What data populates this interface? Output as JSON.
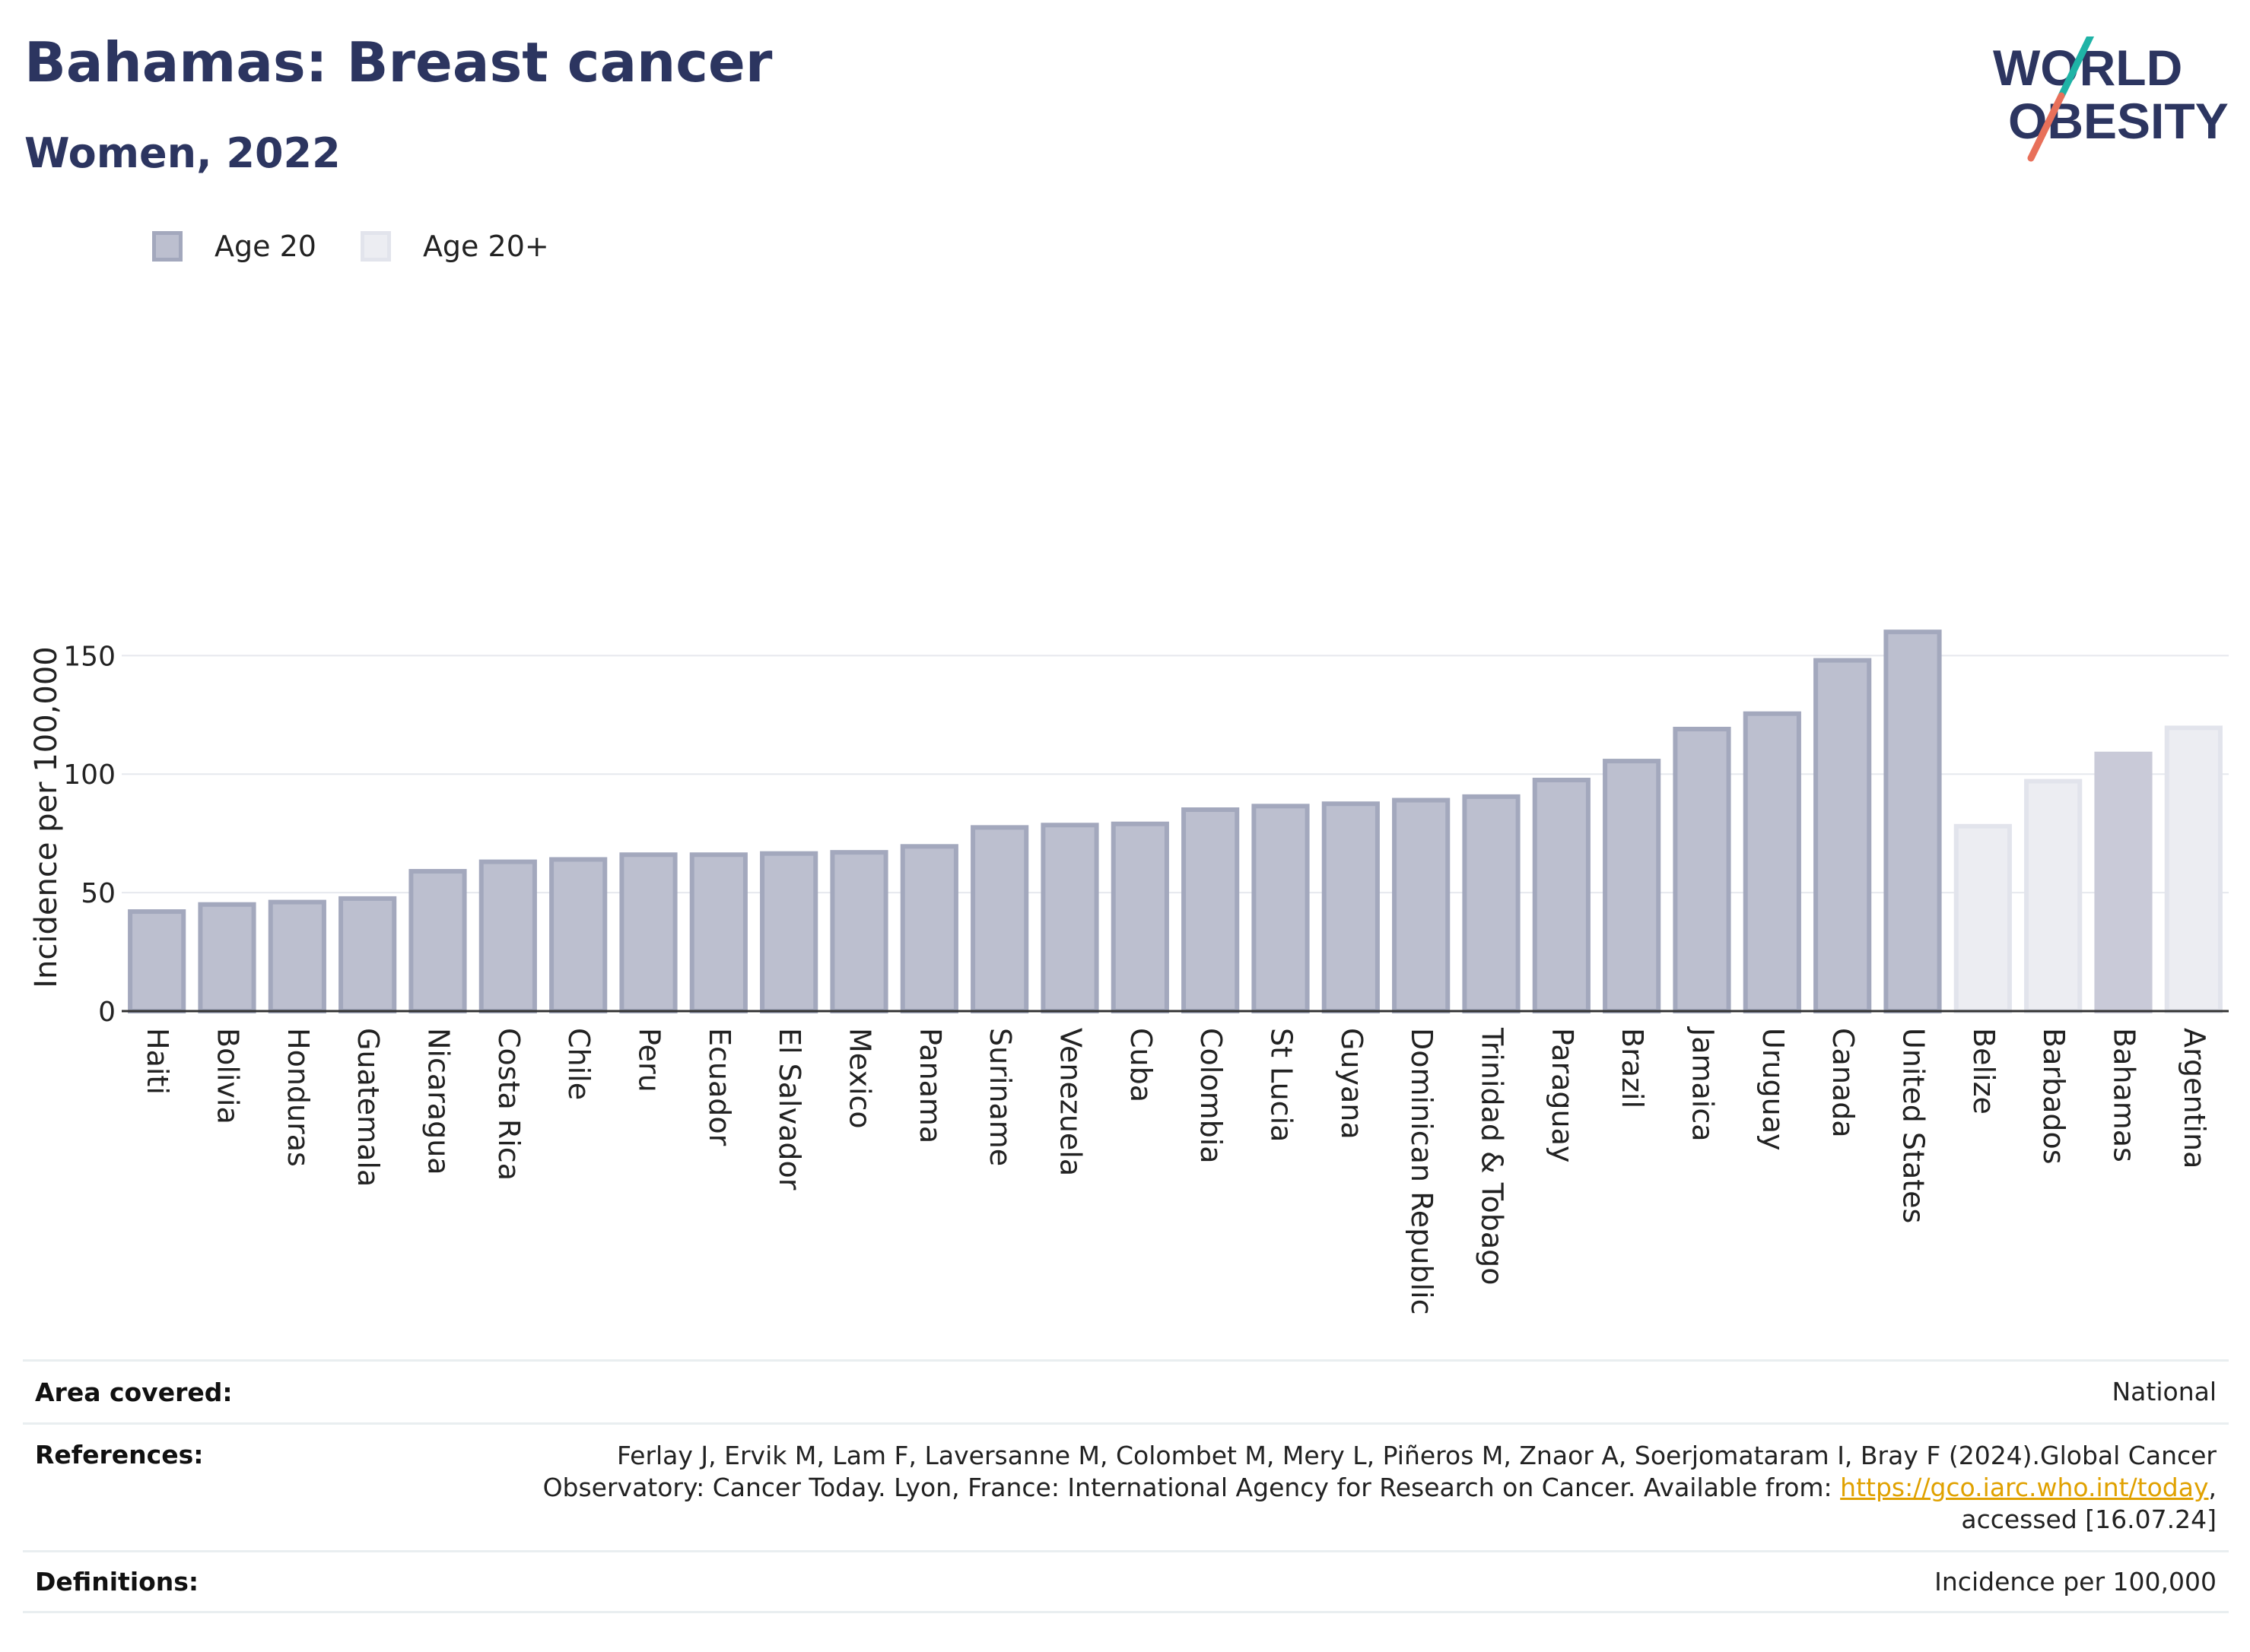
{
  "header": {
    "title": "Bahamas: Breast cancer",
    "subtitle": "Women, 2022"
  },
  "logo": {
    "line1": "WORLD",
    "line2": "OBESITY"
  },
  "legend": {
    "items": [
      "Age 20",
      "Age 20+"
    ]
  },
  "colors": {
    "series_a_fill": "#bcbfcf",
    "series_a_border": "#a3a8bd",
    "series_b_fill": "#ecedf2",
    "series_b_border": "#e2e4ec",
    "highlight_fill": "#c9cad8",
    "title": "#2c3560",
    "logo_teal": "#1fb3a6",
    "logo_coral": "#e8705a",
    "link": "#e0a100"
  },
  "chart_data": {
    "type": "bar",
    "ylabel": "Incidence per 100,000",
    "xlabel": "",
    "ylim": [
      0,
      170
    ],
    "yticks": [
      0,
      50,
      100,
      150
    ],
    "grid": true,
    "legend_position": "top-left",
    "categories": [
      "Haiti",
      "Bolivia",
      "Honduras",
      "Guatemala",
      "Nicaragua",
      "Costa Rica",
      "Chile",
      "Peru",
      "Ecuador",
      "El Salvador",
      "Mexico",
      "Panama",
      "Suriname",
      "Venezuela",
      "Cuba",
      "Colombia",
      "St Lucia",
      "Guyana",
      "Dominican Republic",
      "Trinidad & Tobago",
      "Paraguay",
      "Brazil",
      "Jamaica",
      "Uruguay",
      "Canada",
      "United States",
      "Belize",
      "Barbados",
      "Bahamas",
      "Argentina"
    ],
    "values": [
      42,
      45,
      46,
      47.5,
      59,
      63,
      64,
      66,
      66,
      66.5,
      67,
      69.5,
      77.5,
      78.5,
      79,
      85,
      86.5,
      87.5,
      89,
      90.5,
      97.5,
      105.5,
      119,
      125.5,
      148,
      160,
      78,
      97,
      108.5,
      119.5
    ],
    "series_group": [
      "Age 20",
      "Age 20",
      "Age 20",
      "Age 20",
      "Age 20",
      "Age 20",
      "Age 20",
      "Age 20",
      "Age 20",
      "Age 20",
      "Age 20",
      "Age 20",
      "Age 20",
      "Age 20",
      "Age 20",
      "Age 20",
      "Age 20",
      "Age 20",
      "Age 20",
      "Age 20",
      "Age 20",
      "Age 20",
      "Age 20",
      "Age 20",
      "Age 20",
      "Age 20",
      "Age 20+",
      "Age 20+",
      "Age 20+",
      "Age 20+"
    ],
    "highlight": "Bahamas"
  },
  "info": {
    "area_label": "Area covered:",
    "area_value": "National",
    "ref_label": "References:",
    "ref_line1": "Ferlay J, Ervik M, Lam F, Laversanne M, Colombet M, Mery L, Piñeros M, Znaor A, Soerjomataram I, Bray F (2024).Global Cancer",
    "ref_line2_pre": "Observatory: Cancer Today. Lyon, France: International Agency for Research on Cancer. Available from: ",
    "ref_link": "https://gco.iarc.who.int/today",
    "ref_line2_post": ",",
    "ref_line3": "accessed [16.07.24]",
    "def_label": "Definitions:",
    "def_value": "Incidence per 100,000"
  }
}
